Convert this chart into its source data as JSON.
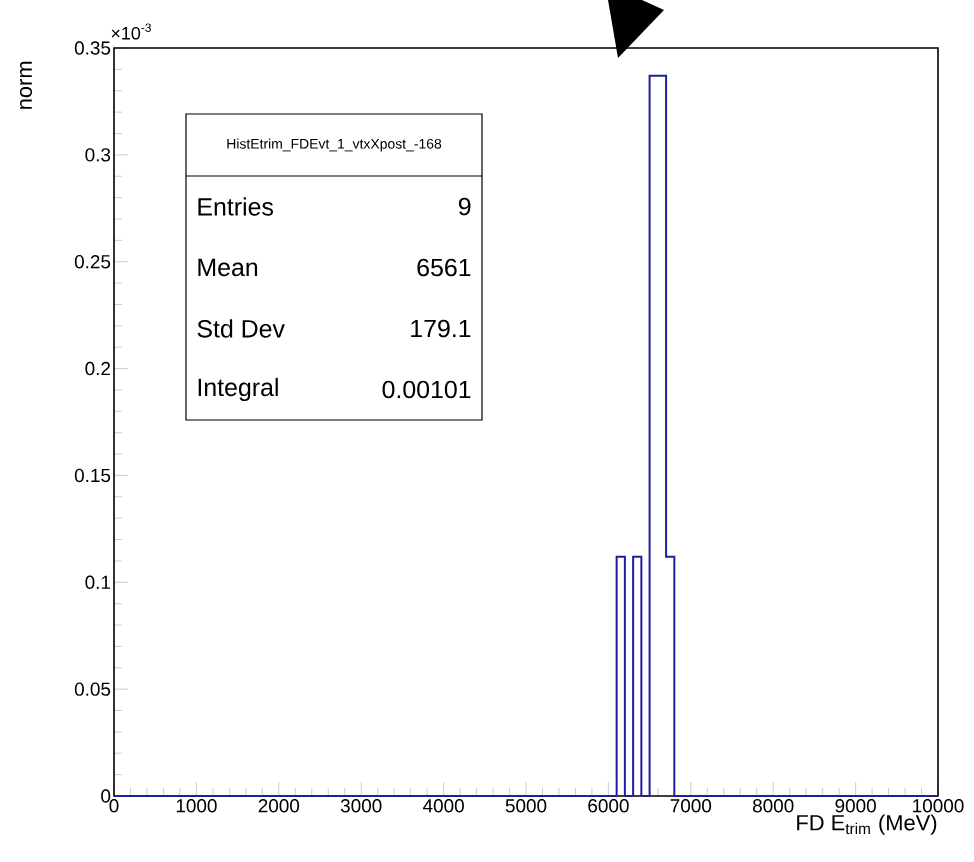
{
  "chart_data": {
    "type": "histogram",
    "xlabel": "FD E$_{trim}$ (MeV)",
    "ylabel": "norm",
    "bins": [
      0,
      6100,
      6200,
      6300,
      6400,
      6500,
      6600,
      6700,
      6800,
      10000
    ],
    "values": [
      0,
      0.112,
      0,
      0.112,
      0,
      0.337,
      0.337,
      0.112,
      0
    ],
    "color": "#1f1f9e",
    "xlim": [
      0,
      10000
    ],
    "ylim": [
      0,
      0.35
    ],
    "xticks": [
      0,
      1000,
      2000,
      3000,
      4000,
      5000,
      6000,
      7000,
      8000,
      9000,
      10000
    ],
    "yticks": [
      0,
      0.05,
      0.1,
      0.15,
      0.2,
      0.25,
      0.3,
      0.35
    ],
    "grid": false,
    "annotations": [
      "×10$^{-3}$",
      "HistEtrim_FDEvt_1_vtxXpost_-168",
      "Entries",
      "9",
      "Mean",
      "6561",
      "Std Dev",
      "179.1",
      "Integral",
      "0.00101"
    ]
  }
}
